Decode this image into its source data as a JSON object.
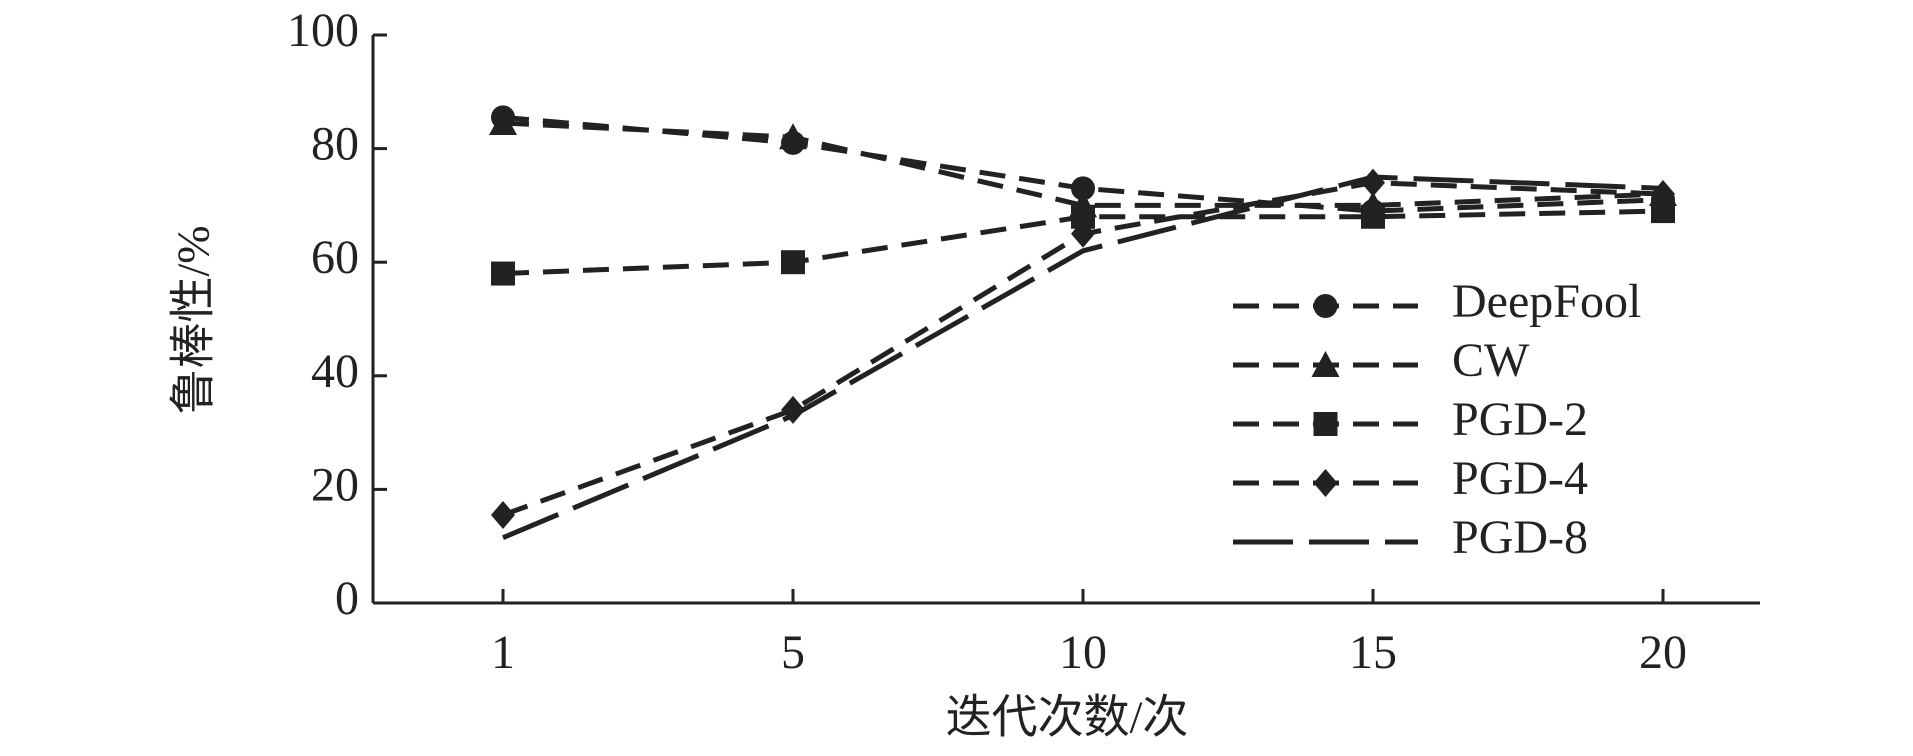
{
  "chart_data": {
    "type": "line",
    "x_label": "迭代次数/次",
    "y_label": "鲁棒性/%",
    "categories": [
      "1",
      "5",
      "10",
      "15",
      "20"
    ],
    "ylim": [
      0,
      100
    ],
    "yticks": [
      0,
      20,
      40,
      60,
      80,
      100
    ],
    "series": [
      {
        "name": "DeepFool",
        "color": "#222222",
        "marker": "circle",
        "dash": "dashed",
        "values": [
          85.5,
          81,
          73,
          69,
          71
        ]
      },
      {
        "name": "CW",
        "color": "#222222",
        "marker": "triangle",
        "dash": "dashed",
        "values": [
          84.5,
          82,
          70,
          70,
          72
        ]
      },
      {
        "name": "PGD-2",
        "color": "#222222",
        "marker": "square",
        "dash": "dashed",
        "values": [
          58,
          60,
          68,
          68,
          69
        ]
      },
      {
        "name": "PGD-4",
        "color": "#222222",
        "marker": "diamond",
        "dash": "dashed",
        "values": [
          15.5,
          34,
          65,
          74,
          72
        ]
      },
      {
        "name": "PGD-8",
        "color": "#222222",
        "marker": "none",
        "dash": "longdash",
        "values": [
          11.5,
          33,
          62,
          75,
          73
        ]
      }
    ],
    "legend": "right"
  }
}
